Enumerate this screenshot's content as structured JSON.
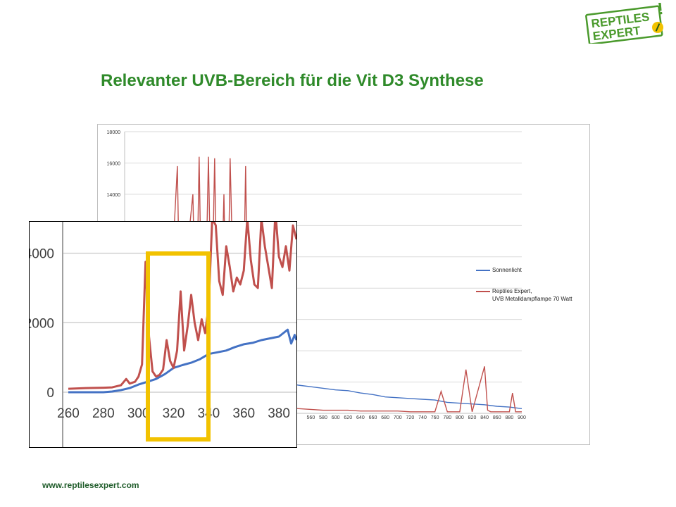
{
  "slide": {
    "title": "Relevanter UVB-Bereich für die Vit D3 Synthese",
    "footer_url": "www.reptilesexpert.com"
  },
  "logo": {
    "line1": "REPTILES",
    "line2": "EXPERT",
    "exclamation": "!",
    "color": "#4a9a2c"
  },
  "colors": {
    "sun": "#4472c4",
    "lamp": "#c0504d",
    "highlight": "#f2c200",
    "title": "#2f8a2a"
  },
  "chart_data": [
    {
      "type": "line",
      "xlim": [
        260,
        900
      ],
      "ylim": [
        0,
        18000
      ],
      "x_ticks": [
        "560",
        "580",
        "600",
        "620",
        "640",
        "660",
        "680",
        "700",
        "720",
        "740",
        "760",
        "780",
        "800",
        "820",
        "840",
        "860",
        "880",
        "900"
      ],
      "y_ticks": [
        "14000",
        "16000",
        "18000"
      ],
      "grid": true,
      "legend_position": "right",
      "series": [
        {
          "name": "Sonnenlicht",
          "x": [
            260,
            280,
            290,
            300,
            310,
            320,
            340,
            360,
            380,
            400,
            420,
            440,
            460,
            480,
            500,
            520,
            540,
            560,
            580,
            600,
            620,
            640,
            660,
            680,
            700,
            720,
            740,
            760,
            780,
            800,
            820,
            840,
            860,
            880,
            900
          ],
          "y": [
            0,
            0,
            100,
            300,
            500,
            900,
            1300,
            1600,
            2000,
            2300,
            2400,
            2350,
            2300,
            2200,
            2100,
            1950,
            1800,
            1700,
            1600,
            1500,
            1450,
            1300,
            1200,
            1050,
            1000,
            950,
            900,
            850,
            700,
            650,
            600,
            550,
            450,
            400,
            300
          ]
        },
        {
          "name": "Reptiles Expert,\nUVB Metalldampflampe 70 Watt",
          "x": [
            260,
            290,
            295,
            300,
            303,
            305,
            307,
            310,
            315,
            318,
            320,
            325,
            330,
            335,
            340,
            345,
            350,
            355,
            360,
            365,
            370,
            375,
            380,
            385,
            390,
            395,
            400,
            405,
            410,
            415,
            420,
            425,
            430,
            435,
            440,
            445,
            450,
            455,
            460,
            465,
            470,
            475,
            480,
            485,
            490,
            500,
            520,
            540,
            560,
            580,
            600,
            620,
            640,
            660,
            680,
            700,
            720,
            740,
            760,
            770,
            780,
            800,
            810,
            820,
            840,
            845,
            850,
            860,
            880,
            885,
            890,
            900
          ],
          "y": [
            0,
            100,
            700,
            300,
            3800,
            600,
            300,
            900,
            1500,
            300,
            2800,
            1800,
            2400,
            1800,
            12000,
            15800,
            3500,
            4000,
            6000,
            12000,
            14000,
            4500,
            16400,
            4000,
            6500,
            16400,
            5200,
            16300,
            4000,
            6000,
            14000,
            3200,
            16300,
            8000,
            4000,
            2500,
            3000,
            15800,
            1500,
            1000,
            3200,
            900,
            700,
            1500,
            600,
            500,
            400,
            300,
            250,
            200,
            200,
            200,
            150,
            150,
            150,
            150,
            100,
            100,
            100,
            1400,
            100,
            100,
            2800,
            100,
            3000,
            200,
            100,
            100,
            100,
            1300,
            100,
            100
          ]
        }
      ]
    },
    {
      "type": "line",
      "xlim": [
        260,
        390
      ],
      "ylim": [
        0,
        4600
      ],
      "x_ticks": [
        "260",
        "280",
        "300",
        "320",
        "340",
        "360",
        "380"
      ],
      "y_ticks": [
        "0",
        "2000",
        "4000"
      ],
      "grid": true,
      "series": [
        {
          "name": "Sonnenlicht",
          "x": [
            260,
            280,
            285,
            290,
            295,
            300,
            305,
            310,
            315,
            320,
            325,
            330,
            335,
            340,
            345,
            350,
            355,
            360,
            365,
            370,
            375,
            380,
            385,
            387,
            389,
            390
          ],
          "y": [
            0,
            0,
            20,
            60,
            120,
            220,
            300,
            380,
            520,
            700,
            780,
            850,
            950,
            1100,
            1150,
            1200,
            1300,
            1380,
            1420,
            1500,
            1550,
            1600,
            1800,
            1400,
            1650,
            1500
          ]
        },
        {
          "name": "Reptiles Expert, UVB Metalldampflampe 70 Watt",
          "x": [
            260,
            270,
            280,
            285,
            290,
            293,
            295,
            298,
            300,
            302,
            304,
            306,
            308,
            310,
            312,
            314,
            316,
            318,
            320,
            322,
            324,
            326,
            328,
            330,
            332,
            334,
            336,
            338,
            340,
            342,
            344,
            346,
            348,
            350,
            352,
            354,
            356,
            358,
            360,
            362,
            364,
            366,
            368,
            370,
            372,
            374,
            376,
            378,
            380,
            382,
            384,
            386,
            388,
            390
          ],
          "y": [
            100,
            120,
            130,
            140,
            200,
            380,
            250,
            300,
            450,
            800,
            3750,
            1600,
            600,
            450,
            500,
            650,
            1500,
            900,
            700,
            1200,
            2900,
            1200,
            1900,
            2800,
            2000,
            1500,
            2100,
            1700,
            2500,
            5000,
            4800,
            3200,
            2800,
            4200,
            3600,
            2900,
            3300,
            3100,
            3500,
            5000,
            3800,
            3100,
            3000,
            5000,
            4200,
            3600,
            3000,
            5200,
            3900,
            3600,
            4200,
            3500,
            4800,
            4400
          ]
        }
      ]
    }
  ]
}
